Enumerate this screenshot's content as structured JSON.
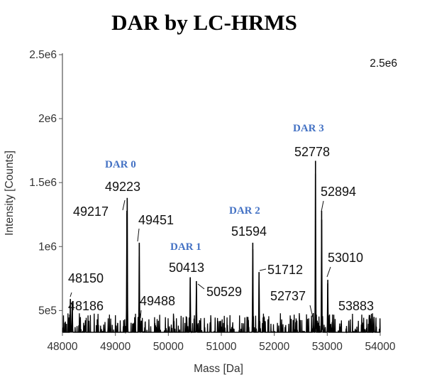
{
  "chart_data": {
    "type": "line",
    "title": "DAR by LC-HRMS",
    "xlabel": "Mass [Da]",
    "ylabel": "Intensity [Counts]",
    "xlim": [
      48000,
      54000
    ],
    "ylim": [
      330000,
      2500000
    ],
    "x_ticks": [
      48000,
      49000,
      50000,
      51000,
      52000,
      53000,
      54000
    ],
    "x_tick_labels": [
      "48000",
      "49000",
      "50000",
      "51000",
      "52000",
      "53000",
      "54000"
    ],
    "y_ticks": [
      500000,
      1000000,
      1500000,
      2000000,
      2500000
    ],
    "y_tick_labels": [
      "5e5",
      "1e6",
      "1.5e6",
      "2e6",
      "2.5e6"
    ],
    "corner_label": "2.5e6",
    "series_color": "#000000",
    "annotation_color": "#4472C4",
    "peaks": [
      {
        "mass": 48150,
        "intensity": 590000,
        "label": "48150"
      },
      {
        "mass": 48186,
        "intensity": 560000,
        "label": "48186"
      },
      {
        "mass": 49217,
        "intensity": 1280000,
        "label": "49217"
      },
      {
        "mass": 49223,
        "intensity": 1380000,
        "label": "49223"
      },
      {
        "mass": 49451,
        "intensity": 1030000,
        "label": "49451"
      },
      {
        "mass": 49488,
        "intensity": 420000,
        "label": "49488"
      },
      {
        "mass": 50413,
        "intensity": 760000,
        "label": "50413"
      },
      {
        "mass": 50529,
        "intensity": 730000,
        "label": "50529"
      },
      {
        "mass": 51594,
        "intensity": 1030000,
        "label": "51594"
      },
      {
        "mass": 51712,
        "intensity": 800000,
        "label": "51712"
      },
      {
        "mass": 52737,
        "intensity": 480000,
        "label": "52737"
      },
      {
        "mass": 52778,
        "intensity": 1670000,
        "label": "52778"
      },
      {
        "mass": 52894,
        "intensity": 1280000,
        "label": "52894"
      },
      {
        "mass": 53010,
        "intensity": 740000,
        "label": "53010"
      },
      {
        "mass": 53883,
        "intensity": 450000,
        "label": "53883"
      }
    ],
    "dar_annotations": [
      {
        "label": "DAR 0",
        "near_mass": 49223
      },
      {
        "label": "DAR 1",
        "near_mass": 50413
      },
      {
        "label": "DAR 2",
        "near_mass": 51594
      },
      {
        "label": "DAR 3",
        "near_mass": 52778
      }
    ]
  }
}
